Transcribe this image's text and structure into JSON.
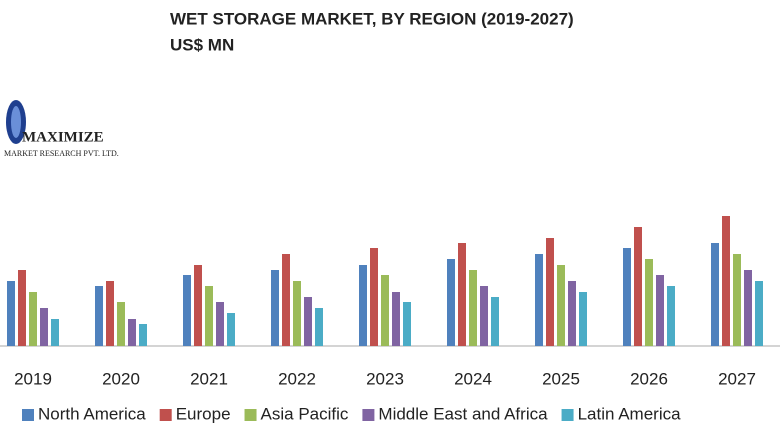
{
  "logo": {
    "name": "MAXIMIZE",
    "tagline": "MARKET RESEARCH PVT. LTD."
  },
  "chart_data": {
    "type": "bar",
    "title": "WET STORAGE MARKET, BY REGION (2019-2027)",
    "subtitle": "US$ MN",
    "categories": [
      "2019",
      "2020",
      "2021",
      "2022",
      "2023",
      "2024",
      "2025",
      "2026",
      "2027"
    ],
    "series": [
      {
        "name": "North America",
        "color": "#4f81bd",
        "values": [
          65,
          60,
          71,
          76,
          81,
          87,
          92,
          98,
          103
        ]
      },
      {
        "name": "Europe",
        "color": "#c0504d",
        "values": [
          76,
          65,
          81,
          92,
          98,
          103,
          108,
          119,
          130
        ]
      },
      {
        "name": "Asia Pacific",
        "color": "#9bbb59",
        "values": [
          54,
          44,
          60,
          65,
          71,
          76,
          81,
          87,
          92
        ]
      },
      {
        "name": "Middle East and Africa",
        "color": "#8064a2",
        "values": [
          38,
          27,
          44,
          49,
          54,
          60,
          65,
          71,
          76
        ]
      },
      {
        "name": "Latin America",
        "color": "#4bacc6",
        "values": [
          27,
          22,
          33,
          38,
          44,
          49,
          54,
          60,
          65
        ]
      }
    ],
    "ylim": [
      0,
      140
    ],
    "legend": "bottom"
  }
}
